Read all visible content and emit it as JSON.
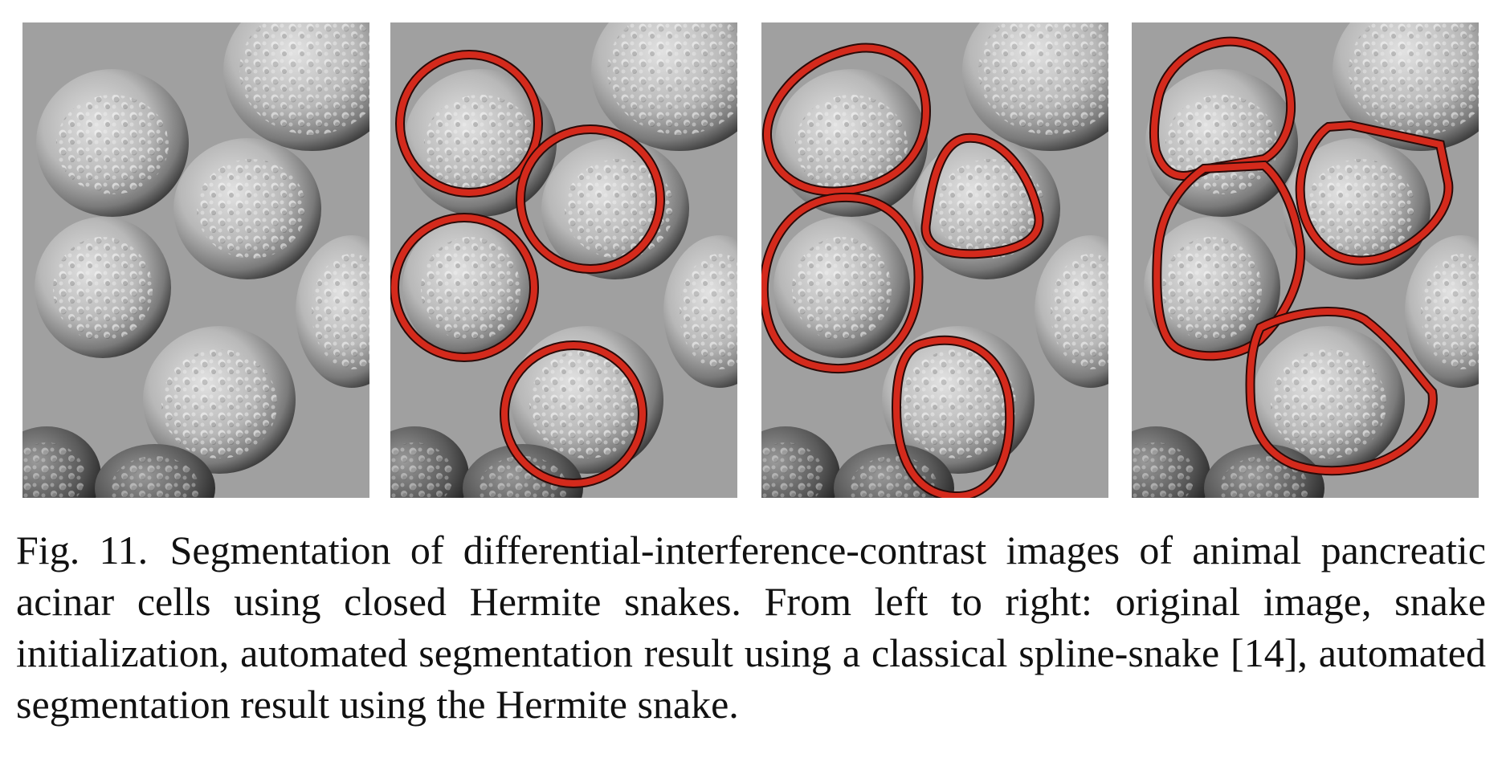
{
  "figure": {
    "panels": [
      {
        "name": "original-image",
        "outline": "none"
      },
      {
        "name": "snake-initialization",
        "outline": "circles"
      },
      {
        "name": "classical-spline-snake-result",
        "outline": "irregular"
      },
      {
        "name": "hermite-snake-result",
        "outline": "cell-boundaries"
      }
    ],
    "contour_color": "#d42a1c",
    "contour_edge_color": "#2a0a08",
    "caption": {
      "label": "Fig. 11.",
      "text": "Segmentation of differential-interference-contrast images of animal pancreatic acinar cells using closed Hermite snakes. From left to right: original image, snake initialization, automated segmentation result using a classical spline-snake [14], automated segmentation result using the Hermite snake."
    }
  }
}
